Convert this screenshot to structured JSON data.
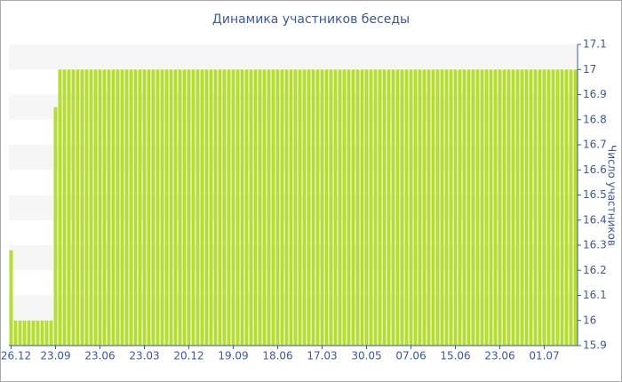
{
  "chart_data": {
    "type": "bar",
    "title": "Динамика участников беседы",
    "y_label": "Число участников",
    "categories": [
      "26.12",
      null,
      null,
      null,
      null,
      null,
      null,
      null,
      null,
      null,
      "23.09",
      null,
      null,
      null,
      null,
      null,
      null,
      null,
      null,
      null,
      "23.06",
      null,
      null,
      null,
      null,
      null,
      null,
      null,
      null,
      null,
      "23.03",
      null,
      null,
      null,
      null,
      null,
      null,
      null,
      null,
      null,
      "20.12",
      null,
      null,
      null,
      null,
      null,
      null,
      null,
      null,
      null,
      "19.09",
      null,
      null,
      null,
      null,
      null,
      null,
      null,
      null,
      null,
      "18.06",
      null,
      null,
      null,
      null,
      null,
      null,
      null,
      null,
      null,
      "17.03",
      null,
      null,
      null,
      null,
      null,
      null,
      null,
      null,
      null,
      "30.05",
      null,
      null,
      null,
      null,
      null,
      null,
      null,
      null,
      null,
      "07.06",
      null,
      null,
      null,
      null,
      null,
      null,
      null,
      null,
      null,
      "15.06",
      null,
      null,
      null,
      null,
      null,
      null,
      null,
      null,
      null,
      "23.06",
      null,
      null,
      null,
      null,
      null,
      null,
      null,
      null,
      null,
      "01.07",
      null,
      null,
      null,
      null,
      null,
      null,
      null
    ],
    "values": [
      16.28,
      16,
      16,
      16,
      16,
      16,
      16,
      16,
      16,
      16,
      16.85,
      17,
      17,
      17,
      17,
      17,
      17,
      17,
      17,
      17,
      17,
      17,
      17,
      17,
      17,
      17,
      17,
      17,
      17,
      17,
      17,
      17,
      17,
      17,
      17,
      17,
      17,
      17,
      17,
      17,
      17,
      17,
      17,
      17,
      17,
      17,
      17,
      17,
      17,
      17,
      17,
      17,
      17,
      17,
      17,
      17,
      17,
      17,
      17,
      17,
      17,
      17,
      17,
      17,
      17,
      17,
      17,
      17,
      17,
      17,
      17,
      17,
      17,
      17,
      17,
      17,
      17,
      17,
      17,
      17,
      17,
      17,
      17,
      17,
      17,
      17,
      17,
      17,
      17,
      17,
      17,
      17,
      17,
      17,
      17,
      17,
      17,
      17,
      17,
      17,
      17,
      17,
      17,
      17,
      17,
      17,
      17,
      17,
      17,
      17,
      17,
      17,
      17,
      17,
      17,
      17,
      17,
      17,
      17,
      17,
      17,
      17,
      17,
      17,
      17,
      17,
      17,
      17
    ],
    "color": "#b5dd35",
    "ylim": [
      15.9,
      17.1
    ],
    "yticks": [
      17.1,
      17,
      16.9,
      16.8,
      16.7,
      16.6,
      16.5,
      16.4,
      16.3,
      16.2,
      16.1,
      16,
      15.9
    ],
    "grid": true
  }
}
